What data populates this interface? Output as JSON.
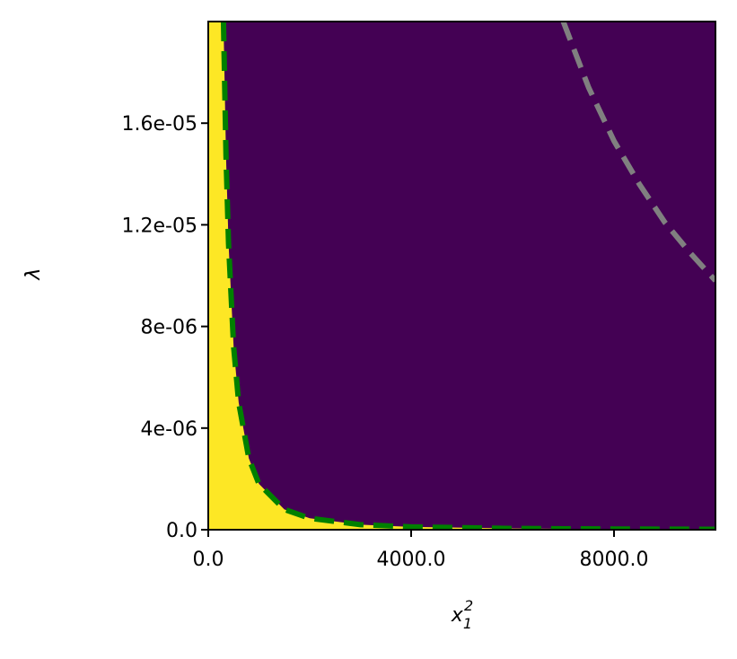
{
  "chart_data": {
    "type": "line",
    "xlabel": {
      "base": "x",
      "sub": "1",
      "sup": "2"
    },
    "ylabel": "λ",
    "xlim": [
      0,
      10000
    ],
    "ylim": [
      0,
      2e-05
    ],
    "xticks": [
      {
        "value": 0,
        "label": "0.0"
      },
      {
        "value": 4000,
        "label": "4000.0"
      },
      {
        "value": 8000,
        "label": "8000.0"
      }
    ],
    "yticks": [
      {
        "value": 0,
        "label": "0.0"
      },
      {
        "value": 4e-06,
        "label": "4e-06"
      },
      {
        "value": 8e-06,
        "label": "8e-06"
      },
      {
        "value": 1.2e-05,
        "label": "1.2e-05"
      },
      {
        "value": 1.6e-05,
        "label": "1.6e-05"
      }
    ],
    "region_colors": [
      "#fde725",
      "#440154"
    ],
    "series": [
      {
        "color": "#008000",
        "x": [
          300,
          350,
          400,
          500,
          600,
          800,
          1000,
          1500,
          2000,
          3000,
          4000,
          6000,
          8000,
          10000
        ],
        "values": [
          2e-05,
          1.47e-05,
          1.125e-05,
          7.2e-06,
          5e-06,
          2.81e-06,
          1.8e-06,
          8e-07,
          4.5e-07,
          2e-07,
          1.125e-07,
          5e-08,
          2.8e-08,
          1.8e-08
        ]
      },
      {
        "color": "#808080",
        "x": [
          7000,
          7500,
          8000,
          8500,
          9000,
          9500,
          10000
        ],
        "values": [
          2e-05,
          1.74e-05,
          1.53e-05,
          1.36e-05,
          1.21e-05,
          1.09e-05,
          9.8e-06
        ]
      }
    ]
  }
}
